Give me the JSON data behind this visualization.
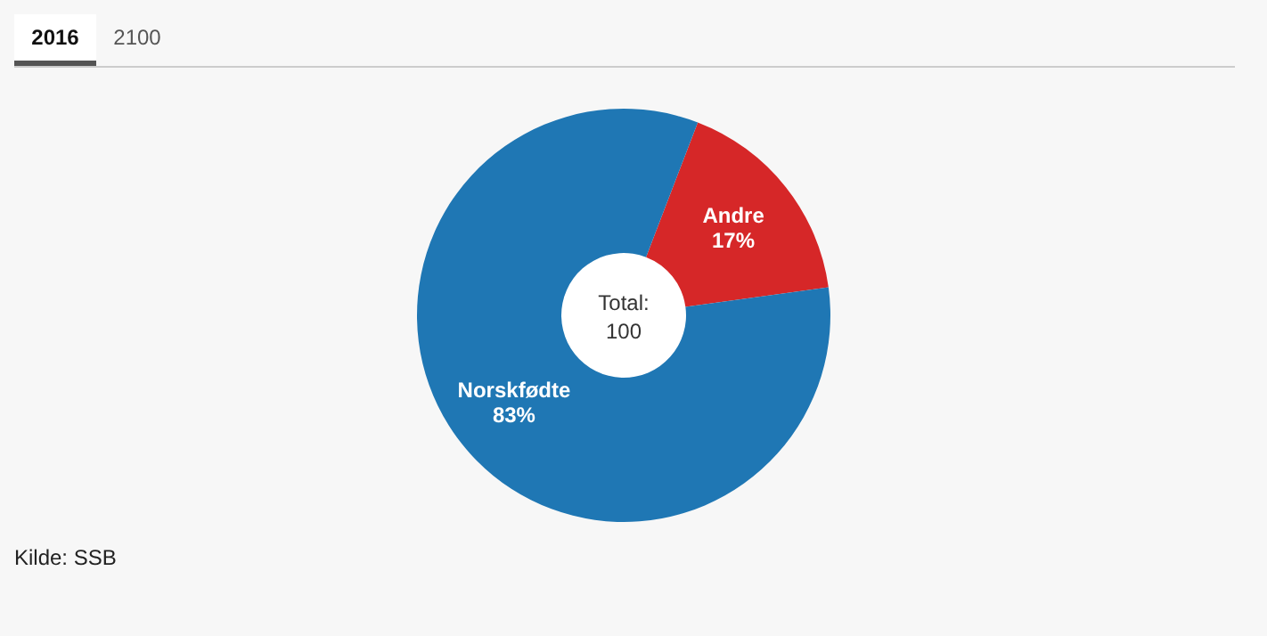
{
  "chart_data": {
    "type": "donut",
    "categories": [
      "Andre",
      "Norskfødte"
    ],
    "values": [
      17,
      83
    ],
    "colors": [
      "#d62728",
      "#1f77b4"
    ],
    "value_labels": [
      "17%",
      "83%"
    ],
    "legend": false,
    "annotations": [
      "2016",
      "2100",
      "Total:",
      "100",
      "Kilde: SSB"
    ]
  }
}
